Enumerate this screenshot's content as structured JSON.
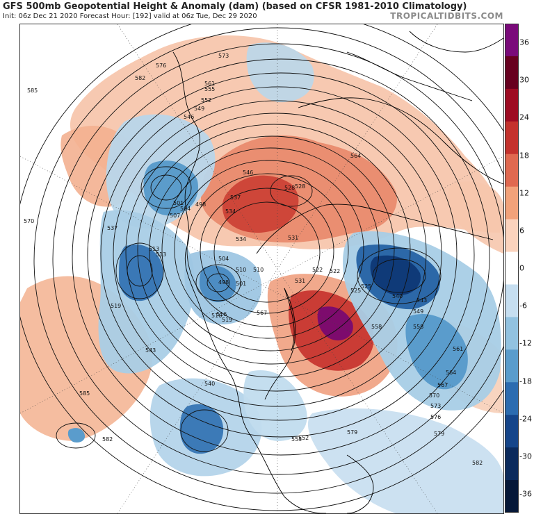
{
  "header": {
    "title": "GFS 500mb Geopotential Height & Anomaly (dam) (based on CFSR 1981-2010 Climatology)",
    "subtitle": "Init: 06z Dec 21 2020   Forecast Hour: [192]   valid at 06z Tue, Dec 29 2020",
    "brand": "TROPICALTIDBITS.COM"
  },
  "colorbar": {
    "ticks": [
      "36",
      "30",
      "24",
      "18",
      "12",
      "6",
      "0",
      "-6",
      "-12",
      "-18",
      "-24",
      "-30",
      "-36"
    ],
    "colors": [
      "#7a0a7a",
      "#67001f",
      "#9e0b22",
      "#c4322d",
      "#e06950",
      "#f2a27a",
      "#fbd3bd",
      "#ffffff",
      "#c6def0",
      "#92c2e0",
      "#5a9ccc",
      "#2c6cb0",
      "#15458a",
      "#0b2a5c",
      "#061838"
    ]
  },
  "map": {
    "contour_labels": [
      "585",
      "579",
      "576",
      "573",
      "570",
      "567",
      "564",
      "561",
      "558",
      "555",
      "552",
      "549",
      "546",
      "543",
      "540",
      "537",
      "534",
      "531",
      "528",
      "525",
      "522",
      "519",
      "516",
      "513",
      "510",
      "507",
      "504",
      "501",
      "498"
    ]
  },
  "map_labels": [
    {
      "text": "585"
    },
    {
      "text": "582"
    },
    {
      "text": "579"
    },
    {
      "text": "576"
    },
    {
      "text": "573"
    },
    {
      "text": "570"
    },
    {
      "text": "567"
    },
    {
      "text": "564"
    },
    {
      "text": "561"
    },
    {
      "text": "558"
    },
    {
      "text": "555"
    },
    {
      "text": "552"
    },
    {
      "text": "549"
    },
    {
      "text": "546"
    },
    {
      "text": "543"
    },
    {
      "text": "540"
    },
    {
      "text": "537"
    },
    {
      "text": "534"
    },
    {
      "text": "531"
    },
    {
      "text": "528"
    },
    {
      "text": "525"
    },
    {
      "text": "522"
    },
    {
      "text": "519"
    },
    {
      "text": "516"
    },
    {
      "text": "513"
    },
    {
      "text": "510"
    },
    {
      "text": "507"
    },
    {
      "text": "504"
    },
    {
      "text": "501"
    },
    {
      "text": "498"
    },
    {
      "text": "585"
    },
    {
      "text": "582"
    },
    {
      "text": "579"
    },
    {
      "text": "576"
    },
    {
      "text": "573"
    },
    {
      "text": "570"
    },
    {
      "text": "567"
    },
    {
      "text": "564"
    },
    {
      "text": "561"
    },
    {
      "text": "558"
    },
    {
      "text": "555"
    },
    {
      "text": "552"
    },
    {
      "text": "549"
    },
    {
      "text": "546"
    },
    {
      "text": "543"
    },
    {
      "text": "540"
    },
    {
      "text": "537"
    },
    {
      "text": "534"
    },
    {
      "text": "531"
    },
    {
      "text": "528"
    },
    {
      "text": "525"
    },
    {
      "text": "522"
    },
    {
      "text": "519"
    },
    {
      "text": "516"
    },
    {
      "text": "513"
    },
    {
      "text": "510"
    },
    {
      "text": "504"
    },
    {
      "text": "501"
    },
    {
      "text": "498"
    },
    {
      "text": "582"
    }
  ]
}
